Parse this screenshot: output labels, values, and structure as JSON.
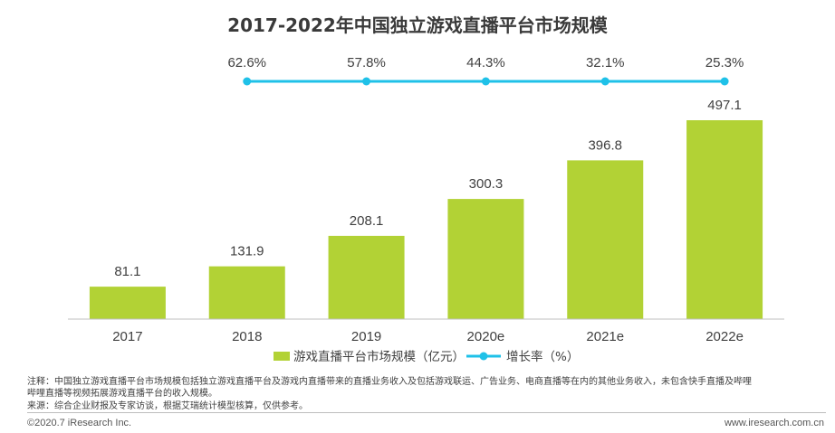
{
  "chart_data": {
    "type": "bar+line",
    "title": "2017-2022年中国独立游戏直播平台市场规模",
    "categories": [
      "2017",
      "2018",
      "2019",
      "2020e",
      "2021e",
      "2022e"
    ],
    "series": [
      {
        "name": "游戏直播平台市场规模（亿元）",
        "type": "bar",
        "values": [
          81.1,
          131.9,
          208.1,
          300.3,
          396.8,
          497.1
        ],
        "labels": [
          "81.1",
          "131.9",
          "208.1",
          "300.3",
          "396.8",
          "497.1"
        ],
        "color": "#b2d235"
      },
      {
        "name": "增长率（%）",
        "type": "line",
        "x": [
          "2018",
          "2019",
          "2020e",
          "2021e",
          "2022e"
        ],
        "values": [
          62.6,
          57.8,
          44.3,
          32.1,
          25.3
        ],
        "labels": [
          "62.6%",
          "57.8%",
          "44.3%",
          "32.1%",
          "25.3%"
        ],
        "color": "#1fc1e8"
      }
    ],
    "ylim": [
      0,
      497.1
    ],
    "grid": false,
    "legend_position": "bottom"
  },
  "notes": {
    "note_line1": "注释：中国独立游戏直播平台市场规模包括独立游戏直播平台及游戏内直播带来的直播业务收入及包括游戏联运、广告业务、电商直播等在内的其他业务收入，未包含快手直播及哔哩",
    "note_line2": "哔哩直播等视频拓展游戏直播平台的收入规模。",
    "source": "来源：综合企业财报及专家访谈，根据艾瑞统计模型核算，仅供参考。"
  },
  "footer": {
    "copyright": "©2020.7 iResearch Inc.",
    "website": "www.iresearch.com.cn"
  }
}
